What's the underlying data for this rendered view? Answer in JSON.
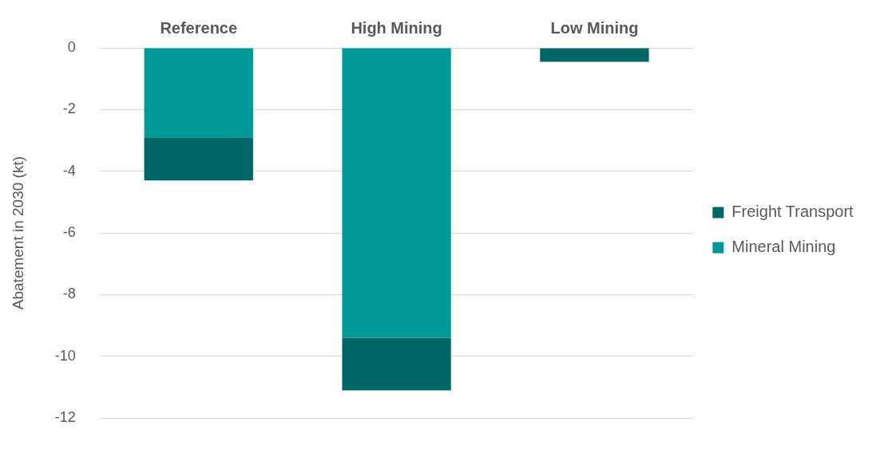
{
  "chart_data": {
    "type": "bar",
    "stacked": true,
    "ylabel": "Abatement in 2030 (kt)",
    "categories": [
      "Reference",
      "High Mining",
      "Low Mining"
    ],
    "series": [
      {
        "name": "Mineral Mining",
        "color": "#009999",
        "values": [
          -2.9,
          -9.4,
          0
        ]
      },
      {
        "name": "Freight Transport",
        "color": "#006666",
        "values": [
          -1.4,
          -1.7,
          -0.45
        ]
      }
    ],
    "ylim": [
      -12,
      0
    ],
    "yticks": [
      -12,
      -10,
      -8,
      -6,
      -4,
      -2,
      0
    ],
    "grid": "y",
    "legend": "right"
  }
}
